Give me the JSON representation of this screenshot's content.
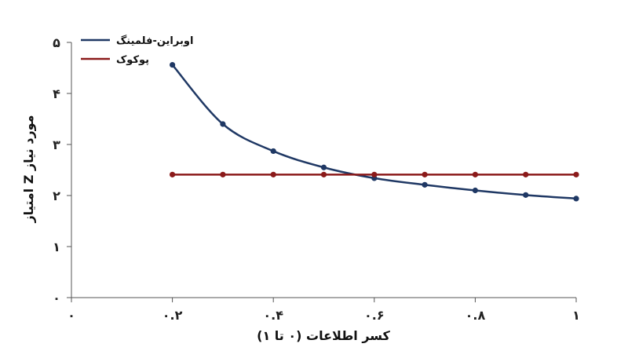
{
  "chart_data": {
    "type": "line",
    "xlabel": "کسر اطلاعات (۰ تا ۱)",
    "ylabel": "امتیاز Z مورد نیاز",
    "xlim": [
      0,
      1
    ],
    "ylim": [
      0,
      5
    ],
    "x_ticks": [
      0,
      0.2,
      0.4,
      0.6,
      0.8,
      1
    ],
    "x_tick_labels": [
      "۰",
      "۰.۲",
      "۰.۴",
      "۰.۶",
      "۰.۸",
      "۱"
    ],
    "y_ticks": [
      0,
      1,
      2,
      3,
      4,
      5
    ],
    "y_tick_labels": [
      "۰",
      "۱",
      "۲",
      "۳",
      "۴",
      "۵"
    ],
    "grid": false,
    "legend_position": "top-left",
    "series": [
      {
        "name": "اوبراین-فلمینگ",
        "color": "#1f3864",
        "x": [
          0.2,
          0.3,
          0.4,
          0.5,
          0.6,
          0.7,
          0.8,
          0.9,
          1.0
        ],
        "y": [
          4.56,
          3.4,
          2.87,
          2.55,
          2.34,
          2.21,
          2.1,
          2.01,
          1.94
        ]
      },
      {
        "name": "پوکوک",
        "color": "#8b1a1a",
        "x": [
          0.2,
          0.3,
          0.4,
          0.5,
          0.6,
          0.7,
          0.8,
          0.9,
          1.0
        ],
        "y": [
          2.41,
          2.41,
          2.41,
          2.41,
          2.41,
          2.41,
          2.41,
          2.41,
          2.41
        ]
      }
    ]
  }
}
